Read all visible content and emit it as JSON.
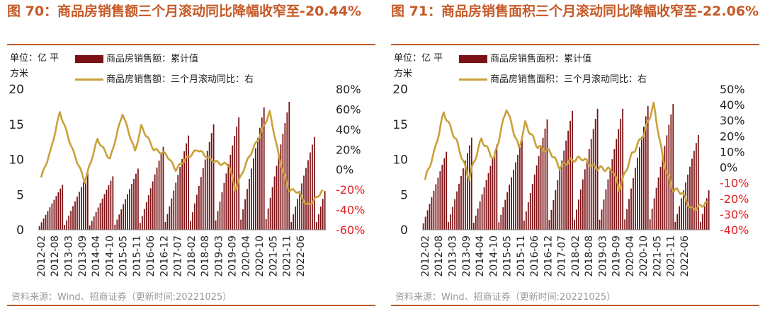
{
  "colors": {
    "title": "#c55a28",
    "bar": "#7b1114",
    "line": "#c9a13a",
    "neg_tick": "#e02020",
    "text": "#222222",
    "source": "#9a9a9a"
  },
  "panels": [
    {
      "title": "图 70：商品房销售额三个月滚动同比降幅收窄至-20.44%",
      "unit": "单位：亿 平方米",
      "legend_bar": "商品房销售额：累计值",
      "legend_line": "商品房销售额：三个月滚动同比：右",
      "source": "资料来源：Wind、招商证券（更新时间:20221025）"
    },
    {
      "title": "图 71：商品房销售面积三个月滚动同比降幅收窄至-22.06%",
      "unit": "单位：亿 平方米",
      "legend_bar": "商品房销售面积：累计值",
      "legend_line": "商品房销售面积：三个月滚动同比：右",
      "source": "资料来源：Wind、招商证券（更新时间:20221025）"
    }
  ],
  "chart_data": [
    {
      "type": "bar+line",
      "title": "图 70：商品房销售额三个月滚动同比降幅收窄至-20.44%",
      "x_tick_labels": [
        "2012-02",
        "2012-08",
        "2013-03",
        "2013-09",
        "2014-04",
        "2014-10",
        "2015-05",
        "2015-11",
        "2016-06",
        "2016-12",
        "2017-07",
        "2018-02",
        "2018-08",
        "2019-03",
        "2019-09",
        "2020-04",
        "2020-10",
        "2021-05",
        "2021-11",
        "2022-06"
      ],
      "y_left": {
        "ticks": [
          "0",
          "5",
          "10",
          "15",
          "20"
        ],
        "ylim": [
          0,
          20
        ]
      },
      "y_right": {
        "ticks": [
          "-60%",
          "-40%",
          "-20%",
          "0%",
          "20%",
          "40%",
          "60%",
          "80%"
        ],
        "ylim": [
          -60,
          80
        ]
      },
      "series": [
        {
          "name": "商品房销售额：累计值",
          "axis": "left",
          "kind": "bar",
          "year_end_values": [
            6.4,
            8.1,
            7.6,
            8.7,
            11.8,
            13.4,
            15.0,
            16.0,
            17.4,
            18.2
          ],
          "y2022_sep": 9.9
        },
        {
          "name": "商品房销售额：三个月滚动同比：右",
          "axis": "right",
          "kind": "line",
          "anchors": [
            [
              0,
              -8
            ],
            [
              6,
              18
            ],
            [
              12,
              57
            ],
            [
              20,
              20
            ],
            [
              28,
              -12
            ],
            [
              36,
              30
            ],
            [
              44,
              10
            ],
            [
              52,
              56
            ],
            [
              60,
              18
            ],
            [
              64,
              43
            ],
            [
              72,
              20
            ],
            [
              80,
              15
            ],
            [
              86,
              0
            ],
            [
              92,
              10
            ],
            [
              100,
              20
            ],
            [
              108,
              10
            ],
            [
              114,
              6
            ],
            [
              120,
              5
            ],
            [
              124,
              -20
            ],
            [
              132,
              10
            ],
            [
              140,
              35
            ],
            [
              146,
              57
            ],
            [
              152,
              12
            ],
            [
              158,
              -20
            ],
            [
              164,
              -22
            ],
            [
              170,
              -36
            ],
            [
              176,
              -28
            ],
            [
              180,
              -20
            ]
          ],
          "last_value": -20.44
        }
      ]
    },
    {
      "type": "bar+line",
      "title": "图 71：商品房销售面积三个月滚动同比降幅收窄至-22.06%",
      "x_tick_labels": [
        "2012-02",
        "2012-08",
        "2013-03",
        "2013-09",
        "2014-04",
        "2014-10",
        "2015-05",
        "2015-11",
        "2016-06",
        "2016-12",
        "2017-07",
        "2018-02",
        "2018-08",
        "2019-03",
        "2019-09",
        "2020-04",
        "2020-10",
        "2021-05",
        "2021-11",
        "2022-06"
      ],
      "y_left": {
        "ticks": [
          "0",
          "5",
          "10",
          "15",
          "20"
        ],
        "ylim": [
          0,
          20
        ]
      },
      "y_right": {
        "ticks": [
          "-40%",
          "-30%",
          "-20%",
          "-10%",
          "0%",
          "10%",
          "20%",
          "30%",
          "40%",
          "50%"
        ],
        "ylim": [
          -40,
          50
        ]
      },
      "series": [
        {
          "name": "商品房销售面积：累计值",
          "axis": "left",
          "kind": "bar",
          "year_end_values": [
            11.1,
            13.1,
            12.1,
            12.8,
            15.7,
            16.9,
            17.2,
            17.2,
            17.6,
            17.9
          ],
          "y2022_sep": 10.1
        },
        {
          "name": "商品房销售面积：三个月滚动同比：右",
          "axis": "right",
          "kind": "line",
          "anchors": [
            [
              0,
              -8
            ],
            [
              6,
              10
            ],
            [
              12,
              35
            ],
            [
              20,
              17
            ],
            [
              28,
              -7
            ],
            [
              36,
              18
            ],
            [
              44,
              5
            ],
            [
              52,
              38
            ],
            [
              60,
              12
            ],
            [
              64,
              28
            ],
            [
              72,
              13
            ],
            [
              80,
              10
            ],
            [
              86,
              0
            ],
            [
              92,
              4
            ],
            [
              100,
              6
            ],
            [
              108,
              0
            ],
            [
              114,
              -1
            ],
            [
              120,
              -2
            ],
            [
              124,
              -14
            ],
            [
              132,
              8
            ],
            [
              140,
              22
            ],
            [
              146,
              40
            ],
            [
              152,
              5
            ],
            [
              158,
              -14
            ],
            [
              164,
              -16
            ],
            [
              170,
              -27
            ],
            [
              176,
              -25
            ],
            [
              180,
              -22
            ]
          ],
          "last_value": -22.06
        }
      ]
    }
  ]
}
